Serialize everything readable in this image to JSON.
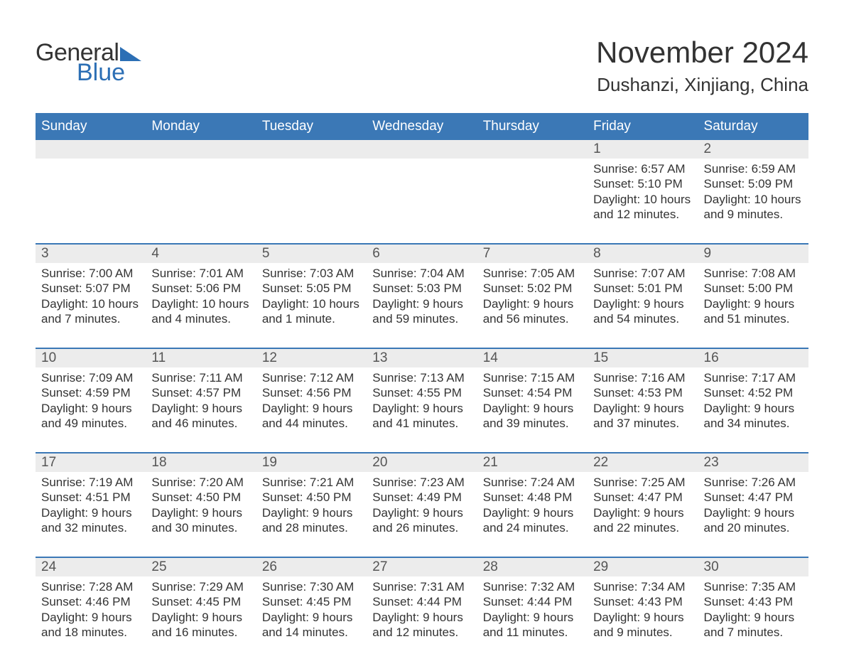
{
  "logo": {
    "text1": "General",
    "text2": "Blue",
    "tri_color": "#2c6fb5"
  },
  "title": "November 2024",
  "location": "Dushanzi, Xinjiang, China",
  "colors": {
    "header_bg": "#3b78b6",
    "header_text": "#ffffff",
    "week_border": "#3b78b6",
    "datebar_bg": "#ececec",
    "body_text": "#333333"
  },
  "day_names": [
    "Sunday",
    "Monday",
    "Tuesday",
    "Wednesday",
    "Thursday",
    "Friday",
    "Saturday"
  ],
  "weeks": [
    [
      {
        "blank": true
      },
      {
        "blank": true
      },
      {
        "blank": true
      },
      {
        "blank": true
      },
      {
        "blank": true
      },
      {
        "date": "1",
        "sunrise": "Sunrise: 6:57 AM",
        "sunset": "Sunset: 5:10 PM",
        "daylight": "Daylight: 10 hours and 12 minutes."
      },
      {
        "date": "2",
        "sunrise": "Sunrise: 6:59 AM",
        "sunset": "Sunset: 5:09 PM",
        "daylight": "Daylight: 10 hours and 9 minutes."
      }
    ],
    [
      {
        "date": "3",
        "sunrise": "Sunrise: 7:00 AM",
        "sunset": "Sunset: 5:07 PM",
        "daylight": "Daylight: 10 hours and 7 minutes."
      },
      {
        "date": "4",
        "sunrise": "Sunrise: 7:01 AM",
        "sunset": "Sunset: 5:06 PM",
        "daylight": "Daylight: 10 hours and 4 minutes."
      },
      {
        "date": "5",
        "sunrise": "Sunrise: 7:03 AM",
        "sunset": "Sunset: 5:05 PM",
        "daylight": "Daylight: 10 hours and 1 minute."
      },
      {
        "date": "6",
        "sunrise": "Sunrise: 7:04 AM",
        "sunset": "Sunset: 5:03 PM",
        "daylight": "Daylight: 9 hours and 59 minutes."
      },
      {
        "date": "7",
        "sunrise": "Sunrise: 7:05 AM",
        "sunset": "Sunset: 5:02 PM",
        "daylight": "Daylight: 9 hours and 56 minutes."
      },
      {
        "date": "8",
        "sunrise": "Sunrise: 7:07 AM",
        "sunset": "Sunset: 5:01 PM",
        "daylight": "Daylight: 9 hours and 54 minutes."
      },
      {
        "date": "9",
        "sunrise": "Sunrise: 7:08 AM",
        "sunset": "Sunset: 5:00 PM",
        "daylight": "Daylight: 9 hours and 51 minutes."
      }
    ],
    [
      {
        "date": "10",
        "sunrise": "Sunrise: 7:09 AM",
        "sunset": "Sunset: 4:59 PM",
        "daylight": "Daylight: 9 hours and 49 minutes."
      },
      {
        "date": "11",
        "sunrise": "Sunrise: 7:11 AM",
        "sunset": "Sunset: 4:57 PM",
        "daylight": "Daylight: 9 hours and 46 minutes."
      },
      {
        "date": "12",
        "sunrise": "Sunrise: 7:12 AM",
        "sunset": "Sunset: 4:56 PM",
        "daylight": "Daylight: 9 hours and 44 minutes."
      },
      {
        "date": "13",
        "sunrise": "Sunrise: 7:13 AM",
        "sunset": "Sunset: 4:55 PM",
        "daylight": "Daylight: 9 hours and 41 minutes."
      },
      {
        "date": "14",
        "sunrise": "Sunrise: 7:15 AM",
        "sunset": "Sunset: 4:54 PM",
        "daylight": "Daylight: 9 hours and 39 minutes."
      },
      {
        "date": "15",
        "sunrise": "Sunrise: 7:16 AM",
        "sunset": "Sunset: 4:53 PM",
        "daylight": "Daylight: 9 hours and 37 minutes."
      },
      {
        "date": "16",
        "sunrise": "Sunrise: 7:17 AM",
        "sunset": "Sunset: 4:52 PM",
        "daylight": "Daylight: 9 hours and 34 minutes."
      }
    ],
    [
      {
        "date": "17",
        "sunrise": "Sunrise: 7:19 AM",
        "sunset": "Sunset: 4:51 PM",
        "daylight": "Daylight: 9 hours and 32 minutes."
      },
      {
        "date": "18",
        "sunrise": "Sunrise: 7:20 AM",
        "sunset": "Sunset: 4:50 PM",
        "daylight": "Daylight: 9 hours and 30 minutes."
      },
      {
        "date": "19",
        "sunrise": "Sunrise: 7:21 AM",
        "sunset": "Sunset: 4:50 PM",
        "daylight": "Daylight: 9 hours and 28 minutes."
      },
      {
        "date": "20",
        "sunrise": "Sunrise: 7:23 AM",
        "sunset": "Sunset: 4:49 PM",
        "daylight": "Daylight: 9 hours and 26 minutes."
      },
      {
        "date": "21",
        "sunrise": "Sunrise: 7:24 AM",
        "sunset": "Sunset: 4:48 PM",
        "daylight": "Daylight: 9 hours and 24 minutes."
      },
      {
        "date": "22",
        "sunrise": "Sunrise: 7:25 AM",
        "sunset": "Sunset: 4:47 PM",
        "daylight": "Daylight: 9 hours and 22 minutes."
      },
      {
        "date": "23",
        "sunrise": "Sunrise: 7:26 AM",
        "sunset": "Sunset: 4:47 PM",
        "daylight": "Daylight: 9 hours and 20 minutes."
      }
    ],
    [
      {
        "date": "24",
        "sunrise": "Sunrise: 7:28 AM",
        "sunset": "Sunset: 4:46 PM",
        "daylight": "Daylight: 9 hours and 18 minutes."
      },
      {
        "date": "25",
        "sunrise": "Sunrise: 7:29 AM",
        "sunset": "Sunset: 4:45 PM",
        "daylight": "Daylight: 9 hours and 16 minutes."
      },
      {
        "date": "26",
        "sunrise": "Sunrise: 7:30 AM",
        "sunset": "Sunset: 4:45 PM",
        "daylight": "Daylight: 9 hours and 14 minutes."
      },
      {
        "date": "27",
        "sunrise": "Sunrise: 7:31 AM",
        "sunset": "Sunset: 4:44 PM",
        "daylight": "Daylight: 9 hours and 12 minutes."
      },
      {
        "date": "28",
        "sunrise": "Sunrise: 7:32 AM",
        "sunset": "Sunset: 4:44 PM",
        "daylight": "Daylight: 9 hours and 11 minutes."
      },
      {
        "date": "29",
        "sunrise": "Sunrise: 7:34 AM",
        "sunset": "Sunset: 4:43 PM",
        "daylight": "Daylight: 9 hours and 9 minutes."
      },
      {
        "date": "30",
        "sunrise": "Sunrise: 7:35 AM",
        "sunset": "Sunset: 4:43 PM",
        "daylight": "Daylight: 9 hours and 7 minutes."
      }
    ]
  ]
}
